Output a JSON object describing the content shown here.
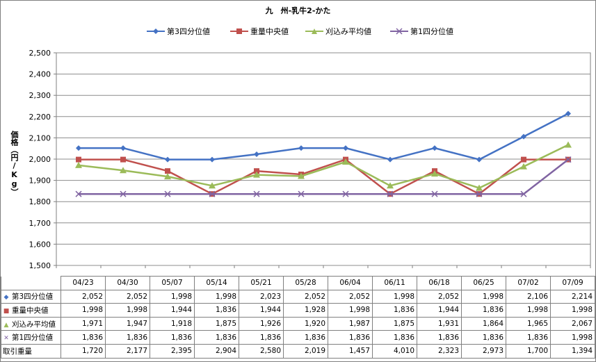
{
  "chart_data": {
    "type": "line",
    "title": "九　州-乳牛2-かた",
    "ylabel": "価格（円/Kg）",
    "ylim": [
      1500,
      2500
    ],
    "yticks": [
      "1,500",
      "1,600",
      "1,700",
      "1,800",
      "1,900",
      "2,000",
      "2,100",
      "2,200",
      "2,300",
      "2,400",
      "2,500"
    ],
    "categories": [
      "04/23",
      "04/30",
      "05/07",
      "05/14",
      "05/21",
      "05/28",
      "06/04",
      "06/11",
      "06/18",
      "06/25",
      "07/02",
      "07/09"
    ],
    "grid": true,
    "legend_position": "top",
    "series": [
      {
        "name": "第3四分位値",
        "color": "#4472c4",
        "marker": "diamond",
        "values": [
          2052,
          2052,
          1998,
          1998,
          2023,
          2052,
          2052,
          1998,
          2052,
          1998,
          2106,
          2214
        ]
      },
      {
        "name": "重量中央値",
        "color": "#c0504d",
        "marker": "square",
        "values": [
          1998,
          1998,
          1944,
          1836,
          1944,
          1928,
          1998,
          1836,
          1944,
          1836,
          1998,
          1998
        ]
      },
      {
        "name": "刈込み平均値",
        "color": "#9bbb59",
        "marker": "triangle",
        "values": [
          1971,
          1947,
          1918,
          1875,
          1926,
          1920,
          1987,
          1875,
          1931,
          1864,
          1965,
          2067
        ]
      },
      {
        "name": "第1四分位値",
        "color": "#8064a2",
        "marker": "x",
        "values": [
          1836,
          1836,
          1836,
          1836,
          1836,
          1836,
          1836,
          1836,
          1836,
          1836,
          1836,
          1998
        ]
      }
    ],
    "table": {
      "rows": [
        {
          "label": "第3四分位値",
          "values": [
            "2,052",
            "2,052",
            "1,998",
            "1,998",
            "2,023",
            "2,052",
            "2,052",
            "1,998",
            "2,052",
            "1,998",
            "2,106",
            "2,214"
          ]
        },
        {
          "label": "重量中央値",
          "values": [
            "1,998",
            "1,998",
            "1,944",
            "1,836",
            "1,944",
            "1,928",
            "1,998",
            "1,836",
            "1,944",
            "1,836",
            "1,998",
            "1,998"
          ]
        },
        {
          "label": "刈込み平均値",
          "values": [
            "1,971",
            "1,947",
            "1,918",
            "1,875",
            "1,926",
            "1,920",
            "1,987",
            "1,875",
            "1,931",
            "1,864",
            "1,965",
            "2,067"
          ]
        },
        {
          "label": "第1四分位値",
          "values": [
            "1,836",
            "1,836",
            "1,836",
            "1,836",
            "1,836",
            "1,836",
            "1,836",
            "1,836",
            "1,836",
            "1,836",
            "1,836",
            "1,998"
          ]
        },
        {
          "label": "取引重量",
          "values": [
            "1,720",
            "2,177",
            "2,395",
            "2,904",
            "2,580",
            "2,019",
            "1,457",
            "4,010",
            "2,323",
            "2,973",
            "1,700",
            "1,394"
          ]
        }
      ]
    }
  }
}
